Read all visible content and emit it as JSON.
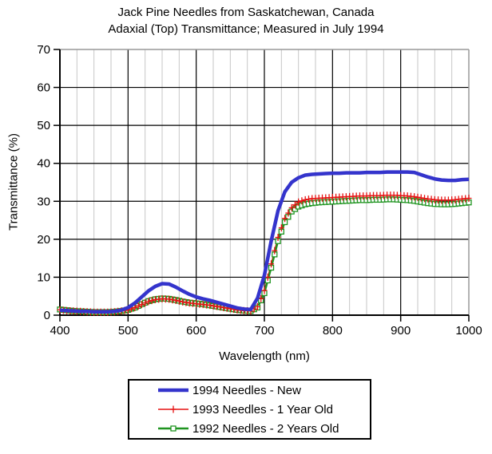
{
  "title": {
    "line1": "Jack Pine Needles from Saskatchewan, Canada",
    "line2": "Adaxial (Top) Transmittance; Measured in July 1994"
  },
  "legend": {
    "entries": [
      {
        "label": "1994 Needles - New"
      },
      {
        "label": "1993 Needles - 1 Year Old"
      },
      {
        "label": "1992 Needles - 2 Years Old"
      }
    ]
  },
  "colors": {
    "grid_minor": "#c6c6c6",
    "grid_major": "#000000",
    "border_gray": "#999999",
    "axis": "#000000"
  },
  "chart_data": {
    "type": "line",
    "title": "Jack Pine Needles from Saskatchewan, Canada",
    "subtitle": "Adaxial (Top) Transmittance; Measured in July 1994",
    "xlabel": "Wavelength (nm)",
    "ylabel": "Transmittance (%)",
    "xlim": [
      400,
      1000
    ],
    "ylim": [
      0,
      70
    ],
    "x_ticks": [
      400,
      500,
      600,
      700,
      800,
      900,
      1000
    ],
    "y_ticks": [
      0,
      10,
      20,
      30,
      40,
      50,
      60,
      70
    ],
    "grid": {
      "horizontal_step": 10,
      "vertical_major_step": 100,
      "vertical_minor_step": 25
    },
    "legend_position": "bottom",
    "x": [
      400,
      410,
      420,
      430,
      440,
      450,
      460,
      470,
      480,
      490,
      500,
      510,
      520,
      530,
      540,
      550,
      560,
      570,
      580,
      590,
      600,
      610,
      620,
      630,
      640,
      650,
      660,
      670,
      680,
      690,
      700,
      710,
      720,
      730,
      740,
      750,
      760,
      770,
      780,
      790,
      800,
      810,
      820,
      830,
      840,
      850,
      860,
      870,
      880,
      890,
      900,
      910,
      920,
      930,
      940,
      950,
      960,
      970,
      980,
      990,
      1000
    ],
    "series": [
      {
        "name": "1994 Needles - New",
        "color": "#3434cc",
        "line_width": 4.5,
        "marker": "none",
        "values": [
          1.3,
          1.2,
          1.1,
          1.0,
          1.0,
          0.9,
          0.9,
          0.9,
          1.0,
          1.3,
          2.0,
          3.2,
          4.8,
          6.4,
          7.6,
          8.3,
          8.2,
          7.4,
          6.4,
          5.5,
          4.8,
          4.3,
          3.9,
          3.4,
          2.9,
          2.4,
          1.9,
          1.6,
          1.5,
          4.5,
          10.5,
          19.5,
          27.5,
          32.5,
          35.0,
          36.2,
          36.9,
          37.1,
          37.2,
          37.3,
          37.4,
          37.4,
          37.5,
          37.5,
          37.5,
          37.6,
          37.6,
          37.6,
          37.7,
          37.7,
          37.7,
          37.7,
          37.6,
          37.0,
          36.4,
          35.9,
          35.6,
          35.5,
          35.5,
          35.7,
          35.8
        ]
      },
      {
        "name": "1993 Needles - 1 Year Old",
        "color": "#e51212",
        "line_width": 1.4,
        "marker": "plus",
        "values": [
          1.4,
          1.2,
          1.1,
          1.0,
          0.9,
          0.8,
          0.8,
          0.8,
          0.9,
          1.1,
          1.4,
          2.0,
          2.8,
          3.6,
          4.1,
          4.3,
          4.2,
          3.9,
          3.5,
          3.2,
          3.0,
          2.8,
          2.6,
          2.3,
          2.0,
          1.7,
          1.4,
          1.2,
          1.1,
          2.2,
          6.5,
          13.5,
          20.5,
          25.5,
          28.3,
          29.8,
          30.4,
          30.7,
          30.8,
          30.9,
          31.0,
          31.1,
          31.2,
          31.3,
          31.4,
          31.4,
          31.5,
          31.5,
          31.6,
          31.6,
          31.5,
          31.4,
          31.2,
          30.9,
          30.6,
          30.4,
          30.3,
          30.3,
          30.4,
          30.6,
          30.8
        ]
      },
      {
        "name": "1992 Needles - 2 Years Old",
        "color": "#1f9420",
        "line_width": 2.4,
        "marker": "square-open",
        "values": [
          1.5,
          1.3,
          1.1,
          1.0,
          0.9,
          0.8,
          0.8,
          0.8,
          0.9,
          1.1,
          1.4,
          2.0,
          2.9,
          3.7,
          4.2,
          4.4,
          4.3,
          4.0,
          3.6,
          3.3,
          3.1,
          2.9,
          2.6,
          2.3,
          2.0,
          1.7,
          1.4,
          1.2,
          1.1,
          2.0,
          5.8,
          12.5,
          19.5,
          24.5,
          27.3,
          28.6,
          29.2,
          29.5,
          29.7,
          29.8,
          29.9,
          30.0,
          30.1,
          30.2,
          30.3,
          30.3,
          30.4,
          30.4,
          30.5,
          30.5,
          30.4,
          30.3,
          30.1,
          29.8,
          29.5,
          29.3,
          29.2,
          29.2,
          29.3,
          29.5,
          29.7
        ]
      }
    ]
  }
}
